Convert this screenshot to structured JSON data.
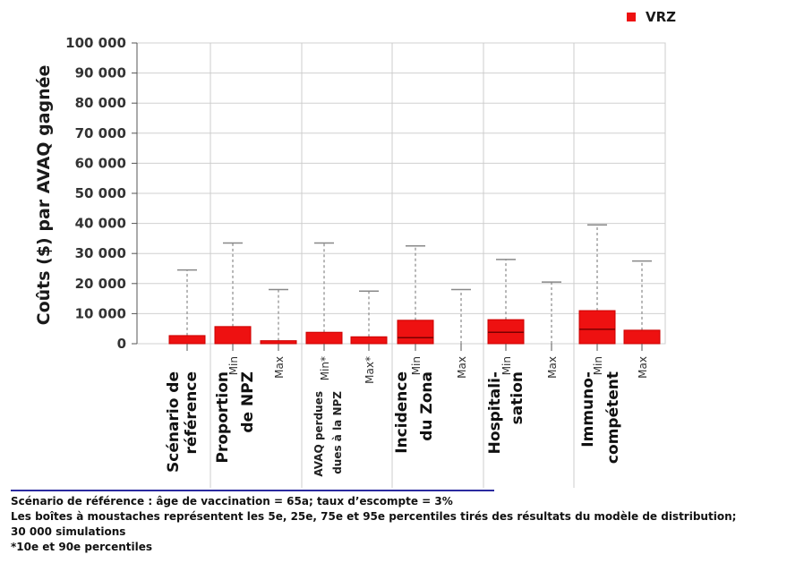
{
  "chart_data": {
    "type": "boxplot",
    "ylabel": "Coûts ($) par AVAQ gagnée",
    "ylim": [
      0,
      100000
    ],
    "y_ticks": [
      "0",
      "10 000",
      "20 000",
      "30 000",
      "40 000",
      "50 000",
      "60 000",
      "70 000",
      "80 000",
      "90 000",
      "100 000"
    ],
    "y_tick_values": [
      0,
      10000,
      20000,
      30000,
      40000,
      50000,
      60000,
      70000,
      80000,
      90000,
      100000
    ],
    "legend": {
      "label": "VRZ",
      "color": "#ee1111"
    },
    "groups": [
      {
        "lines": [
          "Scénario de",
          "référence"
        ],
        "boxes": [
          {
            "label": "",
            "p5": 0,
            "p25": 0,
            "median": 0,
            "p75": 2700,
            "p95": 24500
          }
        ]
      },
      {
        "lines": [
          "Proportion",
          "de NPZ"
        ],
        "boxes": [
          {
            "label": "Min",
            "p5": 0,
            "p25": 0,
            "median": 0,
            "p75": 5700,
            "p95": 33500
          },
          {
            "label": "Max",
            "p5": 0,
            "p25": 0,
            "median": 0,
            "p75": 1000,
            "p95": 18000
          }
        ]
      },
      {
        "lines": [
          "AVAQ perdues",
          "dues à la NPZ"
        ],
        "boxes": [
          {
            "label": "Min*",
            "p5": 0,
            "p25": 0,
            "median": 0,
            "p75": 3800,
            "p95": 33500
          },
          {
            "label": "Max*",
            "p5": 0,
            "p25": 0,
            "median": 0,
            "p75": 2300,
            "p95": 17500
          }
        ]
      },
      {
        "lines": [
          "Incidence",
          "du Zona"
        ],
        "boxes": [
          {
            "label": "Min",
            "p5": 0,
            "p25": 0,
            "median": 2000,
            "p75": 7800,
            "p95": 32500
          },
          {
            "label": "Max",
            "p5": 0,
            "p25": 0,
            "median": 0,
            "p75": 0,
            "p95": 18000
          }
        ]
      },
      {
        "lines": [
          "Hospitali-",
          "sation"
        ],
        "boxes": [
          {
            "label": "Min",
            "p5": 0,
            "p25": 0,
            "median": 3800,
            "p75": 8000,
            "p95": 28000
          },
          {
            "label": "Max",
            "p5": 0,
            "p25": 0,
            "median": 0,
            "p75": 0,
            "p95": 20500
          }
        ]
      },
      {
        "lines": [
          "Immuno-",
          "compétent"
        ],
        "boxes": [
          {
            "label": "Min",
            "p5": 0,
            "p25": 0,
            "median": 4800,
            "p75": 11000,
            "p95": 39500
          },
          {
            "label": "Max",
            "p5": 0,
            "p25": 0,
            "median": 0,
            "p75": 4500,
            "p95": 27500
          }
        ]
      }
    ]
  },
  "notes": [
    "Scénario de référence : âge de vaccination = 65a; taux d’escompte = 3%",
    "Les boîtes à moustaches représentent les 5e, 25e, 75e et 95e percentiles tirés des résultats du modèle de distribution;",
    "30 000 simulations",
    "*10e et 90e percentiles"
  ]
}
